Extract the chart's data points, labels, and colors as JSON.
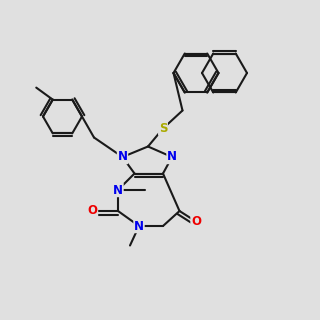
{
  "bg_color": "#e0e0e0",
  "bond_color": "#1a1a1a",
  "N_color": "#0000ee",
  "O_color": "#ee0000",
  "S_color": "#aaaa00",
  "bond_width": 1.5,
  "dbo": 0.012,
  "font_size": 8.5
}
